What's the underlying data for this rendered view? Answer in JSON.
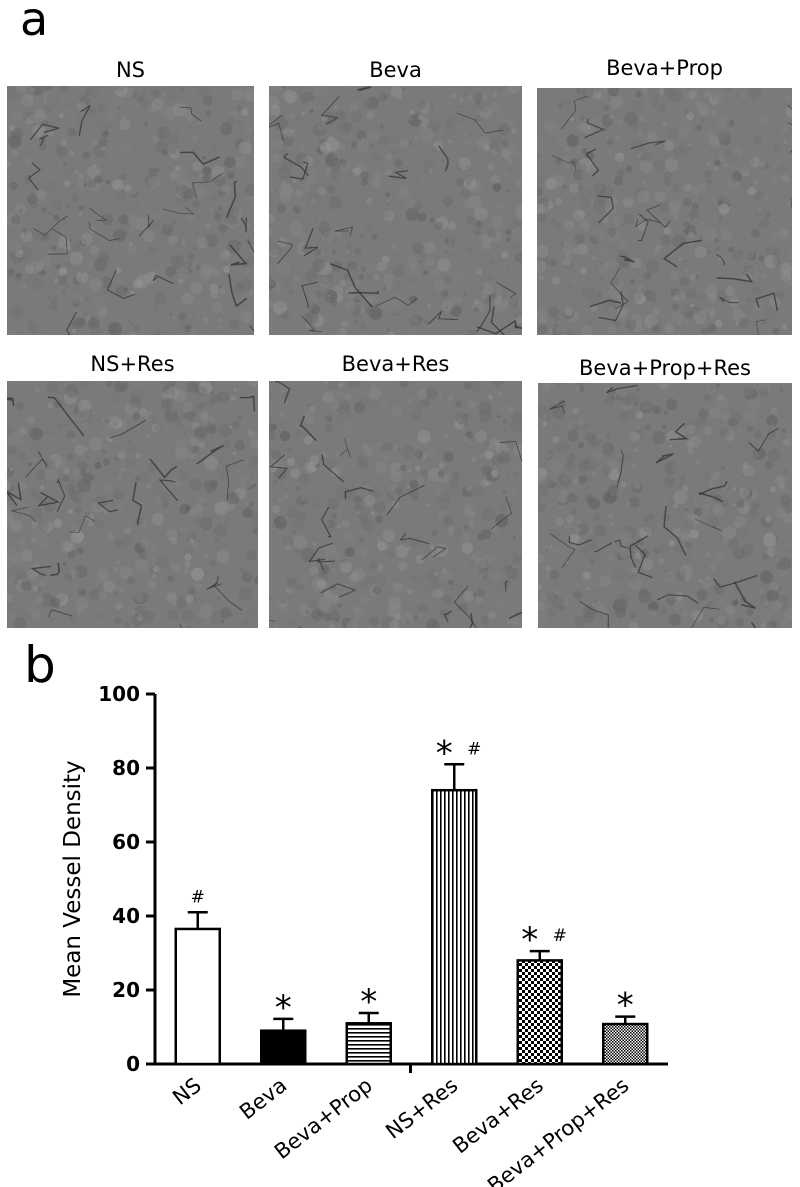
{
  "panel_a": {
    "letter": "a",
    "images": [
      {
        "label": "NS"
      },
      {
        "label": "Beva"
      },
      {
        "label": "Beva+Prop"
      },
      {
        "label": "NS+Res"
      },
      {
        "label": "Beva+Res"
      },
      {
        "label": "Beva+Prop+Res"
      }
    ]
  },
  "panel_b": {
    "letter": "b"
  },
  "chart_data": {
    "type": "bar",
    "title": "",
    "xlabel": "",
    "ylabel": "Mean Vessel Density",
    "ylim": [
      0,
      100
    ],
    "yticks": [
      0,
      20,
      40,
      60,
      80,
      100
    ],
    "categories": [
      "NS",
      "Beva",
      "Beva+Prop",
      "NS+Res",
      "Beva+Res",
      "Beva+Prop+Res"
    ],
    "values": [
      36.5,
      9.0,
      11.0,
      74.0,
      28.0,
      10.8
    ],
    "errors": [
      4.5,
      3.2,
      2.8,
      7.0,
      2.5,
      2.0
    ],
    "fills": [
      "white",
      "black",
      "horizontal-lines",
      "vertical-lines",
      "checker",
      "fine-checker"
    ],
    "annotations": [
      {
        "category": "NS",
        "marks": [
          "#"
        ]
      },
      {
        "category": "Beva",
        "marks": [
          "*"
        ]
      },
      {
        "category": "Beva+Prop",
        "marks": [
          "*"
        ]
      },
      {
        "category": "NS+Res",
        "marks": [
          "*",
          "#"
        ]
      },
      {
        "category": "Beva+Res",
        "marks": [
          "*",
          "#"
        ]
      },
      {
        "category": "Beva+Prop+Res",
        "marks": [
          "*"
        ]
      }
    ],
    "grid": false,
    "legend": "none"
  }
}
